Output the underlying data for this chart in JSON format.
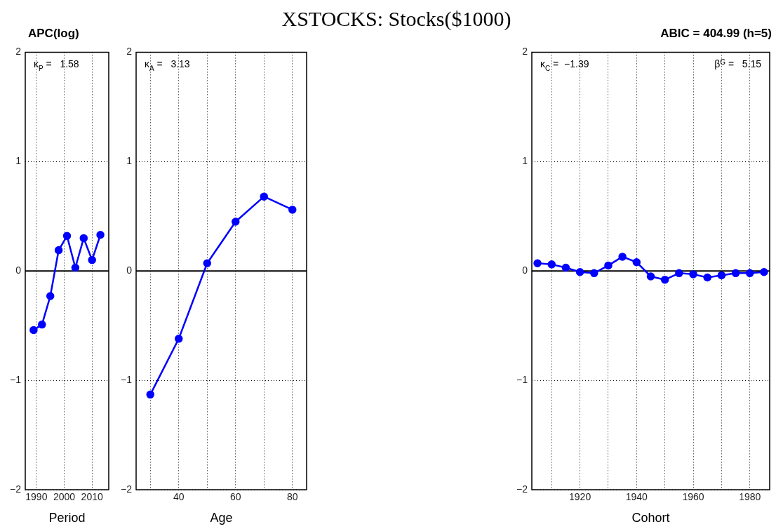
{
  "chart_data": [
    {
      "type": "line",
      "title": "APC(log)",
      "xlabel": "Period",
      "x": [
        1989,
        1992,
        1995,
        1998,
        2001,
        2004,
        2007,
        2010,
        2013
      ],
      "series": [
        {
          "color": "#0000ff",
          "values": [
            -0.54,
            -0.49,
            -0.23,
            0.19,
            0.32,
            0.03,
            0.3,
            0.1,
            0.33
          ]
        }
      ],
      "xlim": [
        1986,
        2016
      ],
      "xticks": [
        1990,
        2000,
        2010
      ],
      "ylim": [
        -2,
        2
      ],
      "yticks": [
        -2,
        -1,
        0,
        1,
        2
      ],
      "grid": true,
      "marker": "circle",
      "line_style": "solid",
      "ref_lines": [
        {
          "axis": "y",
          "value": 0,
          "color": "#000000"
        }
      ],
      "annotations": [
        "κ$_{P}$ =   1.58"
      ]
    },
    {
      "type": "line",
      "title": "XSTOCKS: Stocks($1000)",
      "xlabel": "Age",
      "x": [
        30,
        40,
        50,
        60,
        70,
        80
      ],
      "series": [
        {
          "color": "#0000ff",
          "values": [
            -1.13,
            -0.62,
            0.07,
            0.45,
            0.68,
            0.56
          ]
        }
      ],
      "xlim": [
        25,
        85
      ],
      "xticks": [
        {
          "value": 30,
          "label": null
        },
        40,
        {
          "value": 50,
          "label": null
        },
        60,
        {
          "value": 70,
          "label": null
        },
        80
      ],
      "ylim": [
        -2,
        2
      ],
      "yticks": [
        -2,
        -1,
        0,
        1,
        2
      ],
      "grid": true,
      "marker": "circle",
      "line_style": "solid",
      "ref_lines": [
        {
          "axis": "y",
          "value": 0,
          "color": "#000000"
        }
      ],
      "annotations": [
        "κ$_{A}$ =   3.13"
      ]
    },
    {
      "type": "line",
      "title": "ABIC = 404.99 (h=5)",
      "xlabel": "Cohort",
      "x": [
        1905,
        1910,
        1915,
        1920,
        1925,
        1930,
        1935,
        1940,
        1945,
        1950,
        1955,
        1960,
        1965,
        1970,
        1975,
        1980,
        1985
      ],
      "series": [
        {
          "color": "#0000ff",
          "values": [
            0.07,
            0.06,
            0.03,
            -0.01,
            -0.02,
            0.05,
            0.13,
            0.08,
            -0.05,
            -0.08,
            -0.02,
            -0.03,
            -0.06,
            -0.04,
            -0.02,
            -0.02,
            -0.01
          ]
        }
      ],
      "xlim": [
        1903,
        1987
      ],
      "xticks": [
        {
          "value": 1910,
          "label": null
        },
        1920,
        {
          "value": 1930,
          "label": null
        },
        1940,
        {
          "value": 1950,
          "label": null
        },
        1960,
        {
          "value": 1970,
          "label": null
        },
        1980
      ],
      "ylim": [
        -2,
        2
      ],
      "yticks": [
        -2,
        -1,
        0,
        1,
        2
      ],
      "grid": true,
      "marker": "circle",
      "line_style": "solid",
      "ref_lines": [
        {
          "axis": "y",
          "value": 0,
          "color": "#000000"
        }
      ],
      "annotations": [
        "κ$_{C}$ =  −1.39",
        "β$^{G}$ =   5.15"
      ]
    }
  ]
}
